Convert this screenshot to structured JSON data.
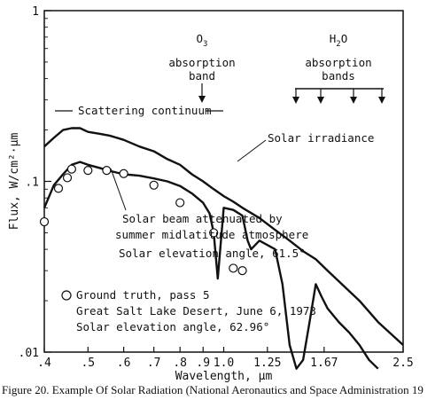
{
  "chart_data": {
    "type": "line",
    "x_scale": "log",
    "y_scale": "log",
    "xlabel": "Wavelength, μm",
    "ylabel": "Flux, W/cm²·μm",
    "xlim": [
      0.4,
      2.5
    ],
    "ylim": [
      0.01,
      1
    ],
    "x_ticks": [
      {
        "value": 0.4,
        "label": ".4"
      },
      {
        "value": 0.5,
        "label": ".5"
      },
      {
        "value": 0.6,
        "label": ".6"
      },
      {
        "value": 0.7,
        "label": ".7"
      },
      {
        "value": 0.8,
        "label": ".8"
      },
      {
        "value": 0.9,
        "label": ".9"
      },
      {
        "value": 1.0,
        "label": "1.0"
      },
      {
        "value": 1.25,
        "label": "1.25"
      },
      {
        "value": 1.67,
        "label": "1.67"
      },
      {
        "value": 2.5,
        "label": "2.5"
      }
    ],
    "y_ticks": [
      {
        "value": 1,
        "label": "1"
      },
      {
        "value": 0.1,
        "label": ".1"
      },
      {
        "value": 0.01,
        "label": ".01"
      }
    ],
    "grid": false,
    "series": [
      {
        "name": "Solar irradiance",
        "style": "line",
        "x": [
          0.4,
          0.42,
          0.44,
          0.46,
          0.48,
          0.5,
          0.53,
          0.56,
          0.6,
          0.65,
          0.7,
          0.75,
          0.8,
          0.85,
          0.9,
          0.95,
          1.0,
          1.05,
          1.1,
          1.2,
          1.3,
          1.4,
          1.5,
          1.6,
          1.7,
          1.8,
          2.0,
          2.2,
          2.5
        ],
        "y": [
          0.16,
          0.18,
          0.2,
          0.205,
          0.205,
          0.195,
          0.19,
          0.185,
          0.175,
          0.16,
          0.15,
          0.135,
          0.125,
          0.11,
          0.1,
          0.09,
          0.082,
          0.076,
          0.07,
          0.061,
          0.052,
          0.045,
          0.039,
          0.035,
          0.03,
          0.026,
          0.02,
          0.015,
          0.011
        ]
      },
      {
        "name": "Solar beam attenuated by summer midlatitude atmosphere",
        "style": "line",
        "x": [
          0.4,
          0.42,
          0.44,
          0.46,
          0.48,
          0.5,
          0.53,
          0.56,
          0.6,
          0.65,
          0.7,
          0.75,
          0.8,
          0.85,
          0.9,
          0.93,
          0.95,
          0.97,
          1.0,
          1.05,
          1.1,
          1.13,
          1.15,
          1.2,
          1.3,
          1.35,
          1.4,
          1.45,
          1.5,
          1.55,
          1.6,
          1.65,
          1.7,
          1.8,
          1.9,
          2.0,
          2.1,
          2.2
        ],
        "y": [
          0.07,
          0.095,
          0.11,
          0.125,
          0.13,
          0.125,
          0.12,
          0.115,
          0.11,
          0.108,
          0.104,
          0.1,
          0.094,
          0.085,
          0.075,
          0.065,
          0.05,
          0.027,
          0.07,
          0.068,
          0.063,
          0.045,
          0.04,
          0.045,
          0.04,
          0.025,
          0.011,
          0.008,
          0.009,
          0.015,
          0.025,
          0.021,
          0.018,
          0.015,
          0.013,
          0.011,
          0.009,
          0.008
        ]
      },
      {
        "name": "Ground truth, pass 5",
        "style": "markers",
        "marker": "open-circle",
        "x": [
          0.4,
          0.43,
          0.45,
          0.46,
          0.5,
          0.55,
          0.6,
          0.7,
          0.8,
          0.95,
          1.05,
          1.1
        ],
        "y": [
          0.058,
          0.091,
          0.105,
          0.118,
          0.116,
          0.116,
          0.111,
          0.095,
          0.075,
          0.05,
          0.031,
          0.03
        ]
      }
    ],
    "annotations": {
      "ozone_line1": "O",
      "ozone_sub": "3",
      "ozone_line2": "absorption",
      "ozone_line3": "band",
      "water_line1a": "H",
      "water_sub": "2",
      "water_line1b": "O",
      "water_line2": "absorption",
      "water_line3": "bands",
      "scattering": "Scattering continuum",
      "solar_irradiance": "Solar irradiance",
      "attenuated_1": "Solar beam attenuated by",
      "attenuated_2": "summer midlatitude atmosphere",
      "attenuated_3": "Solar elevation angle, 61.5°",
      "ground_1": "Ground truth, pass 5",
      "ground_2": "Great Salt Lake Desert, June 6, 1973",
      "ground_3": "Solar elevation angle, 62.96°"
    },
    "caption": "Figure 20. Example Of Solar Radiation (National Aeronautics and Space Administration 19"
  }
}
